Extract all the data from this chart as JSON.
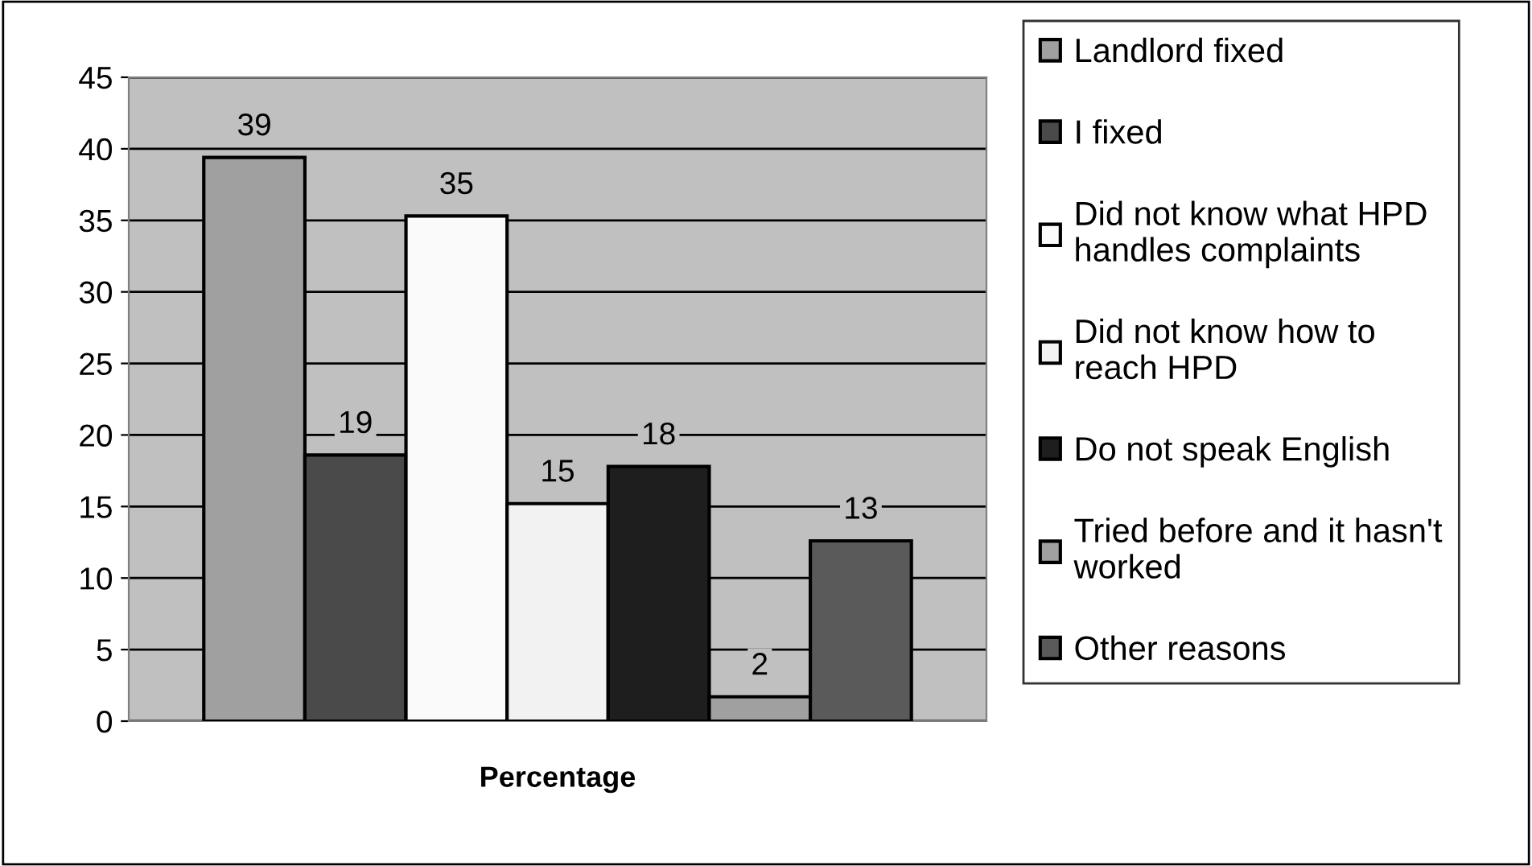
{
  "chart_data": {
    "type": "bar",
    "categories": [
      "Percentage"
    ],
    "series": [
      {
        "name": "Landlord fixed",
        "color": "#a0a0a0",
        "values": [
          39.4
        ],
        "value_labels": [
          "39"
        ]
      },
      {
        "name": "I fixed",
        "color": "#4a4a4a",
        "values": [
          18.6
        ],
        "value_labels": [
          "19"
        ]
      },
      {
        "name": "Did not know what HPD\nhandles complaints",
        "color": "#fafafa",
        "values": [
          35.3
        ],
        "value_labels": [
          "35"
        ]
      },
      {
        "name": "Did not know how to\nreach HPD",
        "color": "#f2f2f2",
        "values": [
          15.2
        ],
        "value_labels": [
          "15"
        ]
      },
      {
        "name": "Do not speak English",
        "color": "#1e1e1e",
        "values": [
          17.8
        ],
        "value_labels": [
          "18"
        ]
      },
      {
        "name": "Tried before and it hasn't\nworked",
        "color": "#a0a0a0",
        "values": [
          1.7
        ],
        "value_labels": [
          "2"
        ]
      },
      {
        "name": "Other reasons",
        "color": "#5a5a5a",
        "values": [
          12.6
        ],
        "value_labels": [
          "13"
        ]
      }
    ],
    "ylim": [
      0,
      45
    ],
    "yticks": [
      0,
      5,
      10,
      15,
      20,
      25,
      30,
      35,
      40,
      45
    ],
    "grid": "y",
    "legend": "right"
  }
}
